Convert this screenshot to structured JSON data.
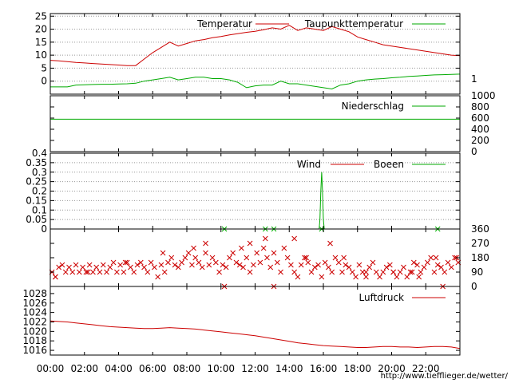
{
  "chart_data": [
    {
      "type": "line",
      "panel": "temperature",
      "ylim": [
        -5,
        26
      ],
      "yticks": [
        0,
        5,
        10,
        15,
        20,
        25
      ],
      "right_label": "1",
      "legend_placement": "top-right",
      "grid": true,
      "series": [
        {
          "name": "Temperatur",
          "color": "#cc0000",
          "x": [
            0,
            0.5,
            1,
            1.5,
            2,
            2.5,
            3,
            3.5,
            4,
            4.5,
            5,
            5.5,
            6,
            6.5,
            7,
            7.5,
            8,
            8.5,
            9,
            9.5,
            10,
            10.5,
            11,
            11.5,
            12,
            12.5,
            13,
            13.5,
            14,
            14.5,
            15,
            15.5,
            16,
            16.5,
            17,
            17.5,
            18,
            18.5,
            19,
            19.5,
            20,
            20.5,
            21,
            21.5,
            22,
            22.5,
            23,
            23.5,
            24
          ],
          "y": [
            8,
            7.8,
            7.5,
            7.2,
            7,
            6.8,
            6.6,
            6.4,
            6.2,
            6,
            6,
            8.5,
            11,
            13,
            15,
            13.5,
            14.5,
            15.5,
            16,
            16.7,
            17.2,
            17.8,
            18.3,
            18.8,
            19.2,
            19.8,
            20.5,
            20,
            21.5,
            19.5,
            20.5,
            20,
            19.5,
            21,
            20,
            19,
            17,
            16,
            15,
            14,
            13.5,
            13,
            12.5,
            12,
            11.5,
            11,
            10.5,
            10,
            9.8
          ]
        },
        {
          "name": "Taupunkttemperatur",
          "color": "#00aa00",
          "x": [
            0,
            0.5,
            1,
            1.5,
            2,
            2.5,
            3,
            3.5,
            4,
            4.5,
            5,
            5.5,
            6,
            6.5,
            7,
            7.5,
            8,
            8.5,
            9,
            9.5,
            10,
            10.5,
            11,
            11.5,
            12,
            12.5,
            13,
            13.5,
            14,
            14.5,
            15,
            15.5,
            16,
            16.5,
            17,
            17.5,
            18,
            18.5,
            19,
            19.5,
            20,
            20.5,
            21,
            21.5,
            22,
            22.5,
            23,
            23.5,
            24
          ],
          "y": [
            -2.2,
            -2.2,
            -2.2,
            -1.5,
            -1.4,
            -1.3,
            -1.2,
            -1.2,
            -1.1,
            -1,
            -0.8,
            0,
            0.5,
            1,
            1.5,
            0.5,
            1,
            1.5,
            1.5,
            1,
            1,
            0.5,
            -0.5,
            -2.5,
            -1.8,
            -1.5,
            -1.5,
            0,
            -1,
            -1,
            -1.5,
            -2,
            -2.5,
            -3,
            -1.5,
            -1,
            0,
            0.5,
            0.8,
            1,
            1.3,
            1.5,
            1.8,
            2,
            2.2,
            2.4,
            2.5,
            2.6,
            2.7
          ]
        }
      ]
    },
    {
      "type": "line",
      "panel": "precipitation",
      "ylim": [
        0,
        1000
      ],
      "yticks_right": [
        0,
        200,
        400,
        600,
        800,
        1000
      ],
      "legend_placement": "top-right",
      "series": [
        {
          "name": "Niederschlag",
          "color": "#00aa00",
          "x": [
            0,
            24
          ],
          "y": [
            580,
            580
          ]
        }
      ]
    },
    {
      "type": "line",
      "panel": "wind",
      "ylim": [
        0,
        0.4
      ],
      "yticks": [
        0,
        0.05,
        0.1,
        0.15,
        0.2,
        0.25,
        0.3,
        0.35,
        0.4
      ],
      "legend_placement": "top-right",
      "grid": true,
      "series": [
        {
          "name": "Wind",
          "color": "#cc0000",
          "x": [
            0,
            24
          ],
          "y": [
            0,
            0
          ]
        },
        {
          "name": "Boeen",
          "color": "#00aa00",
          "x": [
            0,
            15.75,
            15.8,
            15.85,
            15.9,
            15.95,
            16.0,
            16.05,
            24
          ],
          "y": [
            0,
            0,
            0.05,
            0.2,
            0.3,
            0.2,
            0.05,
            0,
            0
          ],
          "markers_x": [
            10.2,
            12.6,
            13.1,
            15.9,
            22.7
          ],
          "markers_y": [
            0,
            0,
            0,
            0,
            0
          ]
        }
      ]
    },
    {
      "type": "scatter",
      "panel": "wind-direction",
      "ylim": [
        0,
        360
      ],
      "yticks_right": [
        0,
        90,
        180,
        270,
        360
      ],
      "series": [
        {
          "name": "",
          "color": "#cc0000",
          "x": [
            0.1,
            0.3,
            0.5,
            0.7,
            0.9,
            1.1,
            1.3,
            1.5,
            1.7,
            1.9,
            2.1,
            2.3,
            2.5,
            2.7,
            2.9,
            3.1,
            3.3,
            3.5,
            3.7,
            3.9,
            4.1,
            4.3,
            4.5,
            4.7,
            4.9,
            5.1,
            5.3,
            5.5,
            5.7,
            5.9,
            6.1,
            6.3,
            6.5,
            6.7,
            6.9,
            7.1,
            7.3,
            7.5,
            7.7,
            7.9,
            8.1,
            8.3,
            8.5,
            8.7,
            8.9,
            9.1,
            9.3,
            9.5,
            9.7,
            9.9,
            10.1,
            10.3,
            10.5,
            10.7,
            10.9,
            11.1,
            11.3,
            11.5,
            11.7,
            11.9,
            12.1,
            12.3,
            12.5,
            12.7,
            12.9,
            13.1,
            13.3,
            13.5,
            13.7,
            13.9,
            14.1,
            14.3,
            14.5,
            14.7,
            14.9,
            15.1,
            15.3,
            15.5,
            15.7,
            15.9,
            16.1,
            16.3,
            16.5,
            16.7,
            16.9,
            17.1,
            17.3,
            17.5,
            17.7,
            17.9,
            18.1,
            18.3,
            18.5,
            18.7,
            18.9,
            19.1,
            19.3,
            19.5,
            19.7,
            19.9,
            20.1,
            20.3,
            20.5,
            20.7,
            20.9,
            21.1,
            21.3,
            21.5,
            21.7,
            21.9,
            22.1,
            22.3,
            22.5,
            22.7,
            22.9,
            23.1,
            23.3,
            23.5,
            23.7,
            23.9
          ],
          "y": [
            90,
            60,
            120,
            135,
            90,
            120,
            90,
            135,
            90,
            120,
            90,
            135,
            90,
            120,
            90,
            135,
            90,
            120,
            150,
            90,
            135,
            90,
            150,
            120,
            90,
            135,
            150,
            120,
            90,
            150,
            120,
            60,
            135,
            90,
            150,
            180,
            135,
            120,
            150,
            180,
            210,
            135,
            180,
            150,
            120,
            210,
            135,
            180,
            150,
            90,
            135,
            120,
            180,
            210,
            150,
            135,
            120,
            180,
            90,
            135,
            210,
            150,
            240,
            180,
            120,
            210,
            150,
            90,
            240,
            180,
            135,
            90,
            60,
            135,
            180,
            150,
            90,
            120,
            135,
            60,
            150,
            120,
            90,
            180,
            150,
            90,
            135,
            120,
            90,
            60,
            135,
            90,
            60,
            120,
            150,
            90,
            60,
            90,
            120,
            135,
            90,
            60,
            90,
            120,
            60,
            90,
            150,
            135,
            90,
            120,
            150,
            180,
            90,
            135,
            120,
            90,
            150,
            120,
            180,
            150
          ],
          "extra_x": [
            0.3,
            2.2,
            4.4,
            6.6,
            8.4,
            9.1,
            10.2,
            11.2,
            11.7,
            12.6,
            13.1,
            14.3,
            15.0,
            16.4,
            17.2,
            18.5,
            20.1,
            21.2,
            21.6,
            22.6,
            23.0,
            23.8
          ],
          "extra_y": [
            60,
            90,
            150,
            210,
            240,
            270,
            0,
            240,
            270,
            300,
            0,
            300,
            180,
            270,
            180,
            90,
            90,
            90,
            60,
            180,
            0,
            180
          ]
        }
      ]
    },
    {
      "type": "line",
      "panel": "pressure",
      "ylim": [
        1015,
        1029.5
      ],
      "yticks": [
        1016,
        1018,
        1020,
        1022,
        1024,
        1026,
        1028
      ],
      "legend_placement": "top-right",
      "series": [
        {
          "name": "Luftdruck",
          "color": "#cc0000",
          "x": [
            0,
            0.5,
            1,
            1.5,
            2,
            2.5,
            3,
            3.5,
            4,
            4.5,
            5,
            5.5,
            6,
            6.5,
            7,
            7.5,
            8,
            8.5,
            9,
            9.5,
            10,
            10.5,
            11,
            11.5,
            12,
            12.5,
            13,
            13.5,
            14,
            14.5,
            15,
            15.5,
            16,
            16.5,
            17,
            17.5,
            18,
            18.5,
            19,
            19.5,
            20,
            20.5,
            21,
            21.5,
            22,
            22.5,
            23,
            23.5,
            24
          ],
          "y": [
            1022.2,
            1022.1,
            1022,
            1021.8,
            1021.6,
            1021.4,
            1021.2,
            1021,
            1020.9,
            1020.8,
            1020.7,
            1020.6,
            1020.6,
            1020.7,
            1020.8,
            1020.7,
            1020.6,
            1020.5,
            1020.3,
            1020.1,
            1019.9,
            1019.7,
            1019.5,
            1019.3,
            1019.1,
            1018.8,
            1018.5,
            1018.2,
            1017.9,
            1017.6,
            1017.4,
            1017.2,
            1017,
            1016.9,
            1016.8,
            1016.7,
            1016.6,
            1016.6,
            1016.7,
            1016.8,
            1016.8,
            1016.7,
            1016.7,
            1016.6,
            1016.7,
            1016.8,
            1016.8,
            1016.7,
            1016.4
          ]
        }
      ]
    }
  ],
  "x_axis": {
    "range": [
      0,
      24
    ],
    "tick_hours": [
      0,
      2,
      4,
      6,
      8,
      10,
      12,
      14,
      16,
      18,
      20,
      22
    ],
    "tick_labels": [
      "00:00",
      "02:00",
      "04:00",
      "06:00",
      "08:00",
      "10:00",
      "12:00",
      "14:00",
      "16:00",
      "18:00",
      "20:00",
      "22:00"
    ]
  },
  "source_url": "http://www.tiefflieger.de/wetter/"
}
